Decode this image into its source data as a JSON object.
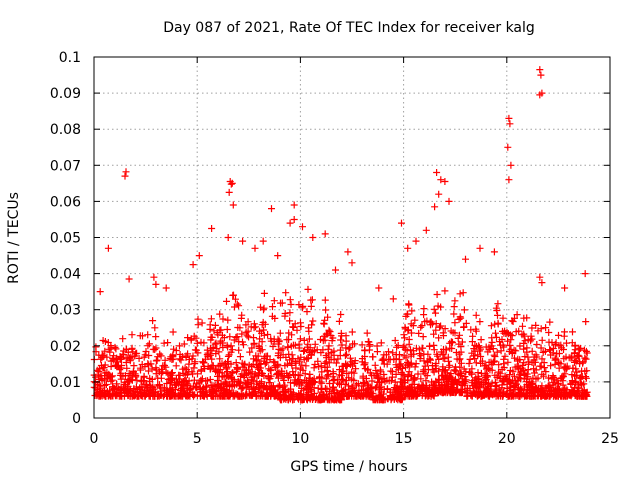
{
  "chart_data": {
    "type": "scatter",
    "title": "Day 087 of 2021, Rate Of TEC Index for receiver kalg",
    "xlabel": "GPS time / hours",
    "ylabel": "ROTI / TECUs",
    "xlim": [
      0,
      25
    ],
    "ylim": [
      0,
      0.1
    ],
    "grid": true,
    "marker": "+",
    "color": "#ff0000",
    "x_ticks": [
      0,
      5,
      10,
      15,
      20,
      25
    ],
    "x_tick_labels": [
      "0",
      "5",
      "10",
      "15",
      "20",
      "25"
    ],
    "y_ticks": [
      0,
      0.01,
      0.02,
      0.03,
      0.04,
      0.05,
      0.06,
      0.07,
      0.08,
      0.09,
      0.1
    ],
    "y_tick_labels": [
      "0",
      "0.01",
      "0.02",
      "0.03",
      "0.04",
      "0.05",
      "0.06",
      "0.07",
      "0.08",
      "0.09",
      "0.1"
    ],
    "series": [
      {
        "name": "ROTI",
        "points": [
          [
            1.5,
            0.067
          ],
          [
            1.55,
            0.0682
          ],
          [
            6.6,
            0.0655
          ],
          [
            6.65,
            0.0648
          ],
          [
            6.7,
            0.065
          ],
          [
            6.55,
            0.0625
          ],
          [
            6.75,
            0.059
          ],
          [
            9.7,
            0.059
          ],
          [
            8.6,
            0.058
          ],
          [
            16.6,
            0.068
          ],
          [
            16.8,
            0.066
          ],
          [
            17.0,
            0.0655
          ],
          [
            16.7,
            0.062
          ],
          [
            17.2,
            0.06
          ],
          [
            16.5,
            0.0585
          ],
          [
            20.1,
            0.083
          ],
          [
            20.15,
            0.0815
          ],
          [
            20.05,
            0.075
          ],
          [
            20.2,
            0.07
          ],
          [
            20.1,
            0.066
          ],
          [
            21.6,
            0.0965
          ],
          [
            21.65,
            0.095
          ],
          [
            21.7,
            0.09
          ],
          [
            21.6,
            0.0895
          ],
          [
            1.7,
            0.0385
          ],
          [
            2.9,
            0.039
          ],
          [
            4.8,
            0.0425
          ],
          [
            0.7,
            0.047
          ],
          [
            3.5,
            0.036
          ],
          [
            5.7,
            0.0525
          ],
          [
            6.5,
            0.05
          ],
          [
            7.2,
            0.049
          ],
          [
            7.8,
            0.047
          ],
          [
            8.2,
            0.049
          ],
          [
            9.5,
            0.054
          ],
          [
            9.7,
            0.055
          ],
          [
            10.1,
            0.053
          ],
          [
            10.6,
            0.05
          ],
          [
            11.2,
            0.051
          ],
          [
            12.3,
            0.046
          ],
          [
            12.5,
            0.043
          ],
          [
            13.8,
            0.036
          ],
          [
            14.9,
            0.054
          ],
          [
            15.2,
            0.047
          ],
          [
            15.6,
            0.049
          ],
          [
            16.1,
            0.052
          ],
          [
            18.7,
            0.047
          ],
          [
            19.4,
            0.046
          ],
          [
            21.6,
            0.039
          ],
          [
            21.7,
            0.0375
          ],
          [
            23.8,
            0.04
          ],
          [
            22.8,
            0.036
          ],
          [
            18.0,
            0.044
          ],
          [
            11.7,
            0.041
          ],
          [
            5.1,
            0.045
          ],
          [
            0.3,
            0.035
          ],
          [
            3.0,
            0.037
          ],
          [
            8.9,
            0.045
          ],
          [
            14.5,
            0.033
          ]
        ],
        "density_bands": [
          {
            "x_start": 0.0,
            "x_end": 1.5,
            "y_low": 0.006,
            "y_high": 0.025,
            "count": 160
          },
          {
            "x_start": 1.5,
            "x_end": 3.0,
            "y_low": 0.006,
            "y_high": 0.03,
            "count": 150
          },
          {
            "x_start": 3.0,
            "x_end": 4.5,
            "y_low": 0.006,
            "y_high": 0.024,
            "count": 150
          },
          {
            "x_start": 4.5,
            "x_end": 6.0,
            "y_low": 0.006,
            "y_high": 0.03,
            "count": 150
          },
          {
            "x_start": 6.0,
            "x_end": 7.5,
            "y_low": 0.006,
            "y_high": 0.038,
            "count": 190
          },
          {
            "x_start": 7.5,
            "x_end": 9.0,
            "y_low": 0.006,
            "y_high": 0.036,
            "count": 190
          },
          {
            "x_start": 9.0,
            "x_end": 10.5,
            "y_low": 0.005,
            "y_high": 0.037,
            "count": 190
          },
          {
            "x_start": 10.5,
            "x_end": 12.0,
            "y_low": 0.005,
            "y_high": 0.035,
            "count": 180
          },
          {
            "x_start": 12.0,
            "x_end": 13.5,
            "y_low": 0.006,
            "y_high": 0.026,
            "count": 150
          },
          {
            "x_start": 13.5,
            "x_end": 15.0,
            "y_low": 0.005,
            "y_high": 0.024,
            "count": 150
          },
          {
            "x_start": 15.0,
            "x_end": 16.5,
            "y_low": 0.006,
            "y_high": 0.036,
            "count": 190
          },
          {
            "x_start": 16.5,
            "x_end": 18.0,
            "y_low": 0.007,
            "y_high": 0.038,
            "count": 190
          },
          {
            "x_start": 18.0,
            "x_end": 19.5,
            "y_low": 0.006,
            "y_high": 0.032,
            "count": 170
          },
          {
            "x_start": 19.5,
            "x_end": 21.0,
            "y_low": 0.006,
            "y_high": 0.034,
            "count": 180
          },
          {
            "x_start": 21.0,
            "x_end": 22.5,
            "y_low": 0.006,
            "y_high": 0.028,
            "count": 170
          },
          {
            "x_start": 22.5,
            "x_end": 23.9,
            "y_low": 0.006,
            "y_high": 0.028,
            "count": 160
          }
        ]
      }
    ]
  }
}
